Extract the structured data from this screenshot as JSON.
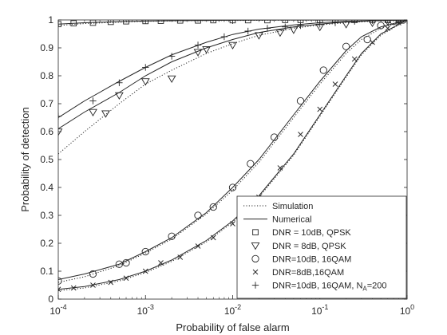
{
  "chart_data": {
    "type": "line",
    "xlabel": "Probability of false alarm",
    "ylabel": "Probability of detection",
    "xscale": "log",
    "xlim": [
      0.0001,
      1
    ],
    "ylim": [
      0,
      1
    ],
    "x_tick_labels": [
      {
        "base": "10",
        "exp": "-4"
      },
      {
        "base": "10",
        "exp": "-3"
      },
      {
        "base": "10",
        "exp": "-2"
      },
      {
        "base": "10",
        "exp": "-1"
      },
      {
        "base": "10",
        "exp": "0"
      }
    ],
    "y_tick_labels": [
      "0",
      "0.1",
      "0.2",
      "0.3",
      "0.4",
      "0.5",
      "0.6",
      "0.7",
      "0.8",
      "0.9",
      "1"
    ],
    "y_tick_values": [
      0,
      0.1,
      0.2,
      0.3,
      0.4,
      0.5,
      0.6,
      0.7,
      0.8,
      0.9,
      1
    ],
    "grid": false,
    "legend_position": "bottom-right",
    "legend": [
      {
        "label": "Simulation",
        "kind": "line",
        "style": "dotted"
      },
      {
        "label": "Numerical",
        "kind": "line",
        "style": "solid"
      },
      {
        "label": "DNR = 10dB, QPSK",
        "kind": "marker",
        "marker": "square"
      },
      {
        "label": "DNR = 8dB, QPSK",
        "kind": "marker",
        "marker": "triangle-down"
      },
      {
        "label": "DNR=10dB, 16QAM",
        "kind": "marker",
        "marker": "circle"
      },
      {
        "label": "DNR=8dB,16QAM",
        "kind": "marker",
        "marker": "x"
      },
      {
        "label": "DNR=10dB, 16QAM, N",
        "sub": "A",
        "suffix": "=200",
        "kind": "marker",
        "marker": "plus"
      }
    ],
    "series": [
      {
        "label_ref": 2,
        "marker": "square",
        "numerical": {
          "x": [
            0.0001,
            0.0002,
            0.0005,
            0.001,
            0.003,
            0.01,
            0.03,
            0.1,
            0.3,
            1
          ],
          "y": [
            0.985,
            0.99,
            0.994,
            0.996,
            0.998,
            0.999,
            0.9995,
            0.9998,
            1,
            1
          ]
        },
        "simulation": {
          "x": [
            0.0001,
            0.0002,
            0.0005,
            0.001,
            0.003,
            0.01,
            0.03,
            0.1,
            0.3,
            1
          ],
          "y": [
            0.98,
            0.987,
            0.992,
            0.995,
            0.997,
            0.998,
            0.999,
            0.9995,
            1,
            1
          ]
        },
        "markers": {
          "x": [
            0.0001,
            0.00015,
            0.00025,
            0.0004,
            0.0006,
            0.001,
            0.0015,
            0.0025,
            0.004,
            0.006,
            0.01,
            0.015,
            0.025,
            0.04,
            0.06,
            0.1,
            0.15,
            0.25,
            0.4,
            0.6,
            0.8
          ],
          "y": [
            0.985,
            0.988,
            0.99,
            0.993,
            0.995,
            0.996,
            0.997,
            0.998,
            0.998,
            0.999,
            0.999,
            0.999,
            0.999,
            1,
            1,
            1,
            1,
            1,
            1,
            1,
            1
          ]
        }
      },
      {
        "label_ref": 3,
        "marker": "triangle-down",
        "numerical": {
          "x": [
            0.0001,
            0.0002,
            0.0005,
            0.001,
            0.002,
            0.005,
            0.01,
            0.02,
            0.05,
            0.1,
            0.2,
            0.5,
            1
          ],
          "y": [
            0.61,
            0.67,
            0.74,
            0.8,
            0.85,
            0.9,
            0.93,
            0.955,
            0.975,
            0.985,
            0.993,
            0.998,
            1
          ]
        },
        "simulation": {
          "x": [
            0.0001,
            0.0002,
            0.0005,
            0.001,
            0.002,
            0.005,
            0.01,
            0.02,
            0.05,
            0.1,
            0.2,
            0.5,
            1
          ],
          "y": [
            0.52,
            0.6,
            0.7,
            0.77,
            0.82,
            0.88,
            0.915,
            0.945,
            0.97,
            0.982,
            0.99,
            0.997,
            1
          ]
        },
        "markers": {
          "x": [
            0.0001,
            0.00025,
            0.00035,
            0.0005,
            0.001,
            0.002,
            0.004,
            0.005,
            0.01,
            0.02,
            0.035,
            0.05,
            0.1,
            0.2,
            0.4,
            0.6,
            0.8
          ],
          "y": [
            0.6,
            0.67,
            0.665,
            0.73,
            0.78,
            0.79,
            0.885,
            0.895,
            0.91,
            0.945,
            0.955,
            0.965,
            0.975,
            0.985,
            0.99,
            0.995,
            1
          ]
        }
      },
      {
        "label_ref": 4,
        "marker": "circle",
        "numerical": {
          "x": [
            0.0001,
            0.0002,
            0.0005,
            0.001,
            0.002,
            0.005,
            0.01,
            0.02,
            0.05,
            0.1,
            0.2,
            0.3,
            0.5,
            1
          ],
          "y": [
            0.07,
            0.09,
            0.125,
            0.17,
            0.22,
            0.31,
            0.4,
            0.5,
            0.66,
            0.78,
            0.89,
            0.94,
            0.975,
            1
          ]
        },
        "simulation": {
          "x": [
            0.0001,
            0.0002,
            0.0005,
            0.001,
            0.002,
            0.005,
            0.01,
            0.02,
            0.05,
            0.1,
            0.2,
            0.3,
            0.5,
            1
          ],
          "y": [
            0.06,
            0.08,
            0.12,
            0.165,
            0.215,
            0.305,
            0.39,
            0.49,
            0.65,
            0.77,
            0.88,
            0.93,
            0.97,
            1
          ]
        },
        "markers": {
          "x": [
            0.0001,
            0.00025,
            0.0005,
            0.0006,
            0.001,
            0.002,
            0.004,
            0.006,
            0.01,
            0.016,
            0.03,
            0.06,
            0.11,
            0.2,
            0.35,
            0.5,
            0.7,
            0.9
          ],
          "y": [
            0.065,
            0.09,
            0.125,
            0.13,
            0.17,
            0.225,
            0.3,
            0.33,
            0.4,
            0.485,
            0.58,
            0.71,
            0.82,
            0.905,
            0.93,
            0.98,
            0.995,
            1
          ]
        }
      },
      {
        "label_ref": 5,
        "marker": "x",
        "numerical": {
          "x": [
            0.0001,
            0.0002,
            0.0005,
            0.001,
            0.002,
            0.005,
            0.01,
            0.02,
            0.05,
            0.1,
            0.2,
            0.3,
            0.5,
            1
          ],
          "y": [
            0.035,
            0.045,
            0.07,
            0.1,
            0.14,
            0.21,
            0.28,
            0.37,
            0.52,
            0.66,
            0.8,
            0.88,
            0.95,
            1
          ]
        },
        "simulation": {
          "x": [
            0.0001,
            0.0002,
            0.0005,
            0.001,
            0.002,
            0.005,
            0.01,
            0.02,
            0.05,
            0.1,
            0.2,
            0.3,
            0.5,
            1
          ],
          "y": [
            0.03,
            0.04,
            0.065,
            0.095,
            0.135,
            0.205,
            0.275,
            0.365,
            0.515,
            0.655,
            0.795,
            0.875,
            0.945,
            1
          ]
        },
        "markers": {
          "x": [
            0.0001,
            0.00015,
            0.00025,
            0.0004,
            0.0006,
            0.001,
            0.0015,
            0.0025,
            0.004,
            0.006,
            0.01,
            0.015,
            0.02,
            0.035,
            0.06,
            0.1,
            0.15,
            0.25,
            0.4,
            0.6,
            0.8
          ],
          "y": [
            0.035,
            0.04,
            0.05,
            0.06,
            0.075,
            0.1,
            0.13,
            0.15,
            0.19,
            0.22,
            0.27,
            0.32,
            0.365,
            0.47,
            0.59,
            0.68,
            0.77,
            0.86,
            0.92,
            0.97,
            0.99
          ]
        }
      },
      {
        "label_ref": 6,
        "marker": "plus",
        "numerical": {
          "x": [
            0.0001,
            0.0002,
            0.0005,
            0.001,
            0.002,
            0.005,
            0.01,
            0.02,
            0.05,
            0.1,
            0.2,
            0.5,
            1
          ],
          "y": [
            0.65,
            0.71,
            0.78,
            0.83,
            0.875,
            0.92,
            0.948,
            0.967,
            0.982,
            0.99,
            0.995,
            0.998,
            1
          ]
        },
        "simulation": null,
        "markers": {
          "x": [
            0.0001,
            0.00025,
            0.0005,
            0.001,
            0.002,
            0.004,
            0.008,
            0.015,
            0.025,
            0.04,
            0.06,
            0.1,
            0.15,
            0.25,
            0.4,
            0.6,
            0.8
          ],
          "y": [
            0.655,
            0.71,
            0.775,
            0.83,
            0.87,
            0.91,
            0.94,
            0.96,
            0.97,
            0.975,
            0.98,
            0.985,
            0.99,
            0.995,
            0.998,
            1,
            1
          ]
        }
      }
    ]
  }
}
